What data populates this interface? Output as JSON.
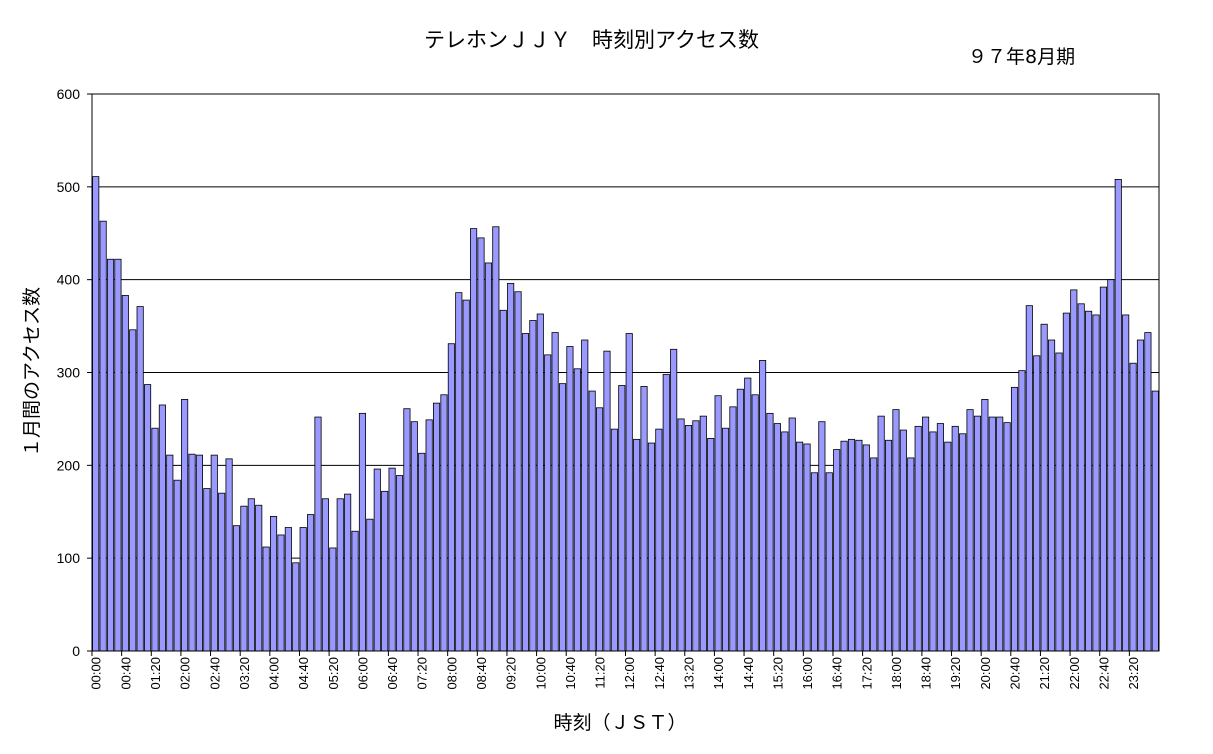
{
  "chart_data": {
    "type": "bar",
    "title": "テレホンＪＪＹ　時刻別アクセス数",
    "subtitle": "９７年8月期",
    "xlabel": "時刻（ＪＳＴ）",
    "ylabel": "１月間のアクセス数",
    "ylim": [
      0,
      600
    ],
    "yticks": [
      0,
      100,
      200,
      300,
      400,
      500,
      600
    ],
    "grid": "horizontal",
    "bar_color": "#9999ff",
    "bar_border": "#000000",
    "categories": [
      "00:00",
      "00:10",
      "00:20",
      "00:30",
      "00:40",
      "00:50",
      "01:00",
      "01:10",
      "01:20",
      "01:30",
      "01:40",
      "01:50",
      "02:00",
      "02:10",
      "02:20",
      "02:30",
      "02:40",
      "02:50",
      "03:00",
      "03:10",
      "03:20",
      "03:30",
      "03:40",
      "03:50",
      "04:00",
      "04:10",
      "04:20",
      "04:30",
      "04:40",
      "04:50",
      "05:00",
      "05:10",
      "05:20",
      "05:30",
      "05:40",
      "05:50",
      "06:00",
      "06:10",
      "06:20",
      "06:30",
      "06:40",
      "06:50",
      "07:00",
      "07:10",
      "07:20",
      "07:30",
      "07:40",
      "07:50",
      "08:00",
      "08:10",
      "08:20",
      "08:30",
      "08:40",
      "08:50",
      "09:00",
      "09:10",
      "09:20",
      "09:30",
      "09:40",
      "09:50",
      "10:00",
      "10:10",
      "10:20",
      "10:30",
      "10:40",
      "10:50",
      "11:00",
      "11:10",
      "11:20",
      "11:30",
      "11:40",
      "11:50",
      "12:00",
      "12:10",
      "12:20",
      "12:30",
      "12:40",
      "12:50",
      "13:00",
      "13:10",
      "13:20",
      "13:30",
      "13:40",
      "13:50",
      "14:00",
      "14:10",
      "14:20",
      "14:30",
      "14:40",
      "14:50",
      "15:00",
      "15:10",
      "15:20",
      "15:30",
      "15:40",
      "15:50",
      "16:00",
      "16:10",
      "16:20",
      "16:30",
      "16:40",
      "16:50",
      "17:00",
      "17:10",
      "17:20",
      "17:30",
      "17:40",
      "17:50",
      "18:00",
      "18:10",
      "18:20",
      "18:30",
      "18:40",
      "18:50",
      "19:00",
      "19:10",
      "19:20",
      "19:30",
      "19:40",
      "19:50",
      "20:00",
      "20:10",
      "20:20",
      "20:30",
      "20:40",
      "20:50",
      "21:00",
      "21:10",
      "21:20",
      "21:30",
      "21:40",
      "21:50",
      "22:00",
      "22:10",
      "22:20",
      "22:30",
      "22:40",
      "22:50",
      "23:00",
      "23:10",
      "23:20",
      "23:30",
      "23:40",
      "23:50"
    ],
    "x_tick_labels": [
      "00:00",
      "00:40",
      "01:20",
      "02:00",
      "02:40",
      "03:20",
      "04:00",
      "04:40",
      "05:20",
      "06:00",
      "06:40",
      "07:20",
      "08:00",
      "08:40",
      "09:20",
      "10:00",
      "10:40",
      "11:20",
      "12:00",
      "12:40",
      "13:20",
      "14:00",
      "14:40",
      "15:20",
      "16:00",
      "16:40",
      "17:20",
      "18:00",
      "18:40",
      "19:20",
      "20:00",
      "20:40",
      "21:20",
      "22:00",
      "22:40",
      "23:20"
    ],
    "values": [
      511,
      463,
      422,
      422,
      383,
      346,
      371,
      287,
      240,
      265,
      211,
      184,
      271,
      212,
      211,
      175,
      211,
      170,
      207,
      135,
      156,
      164,
      157,
      112,
      145,
      125,
      133,
      95,
      133,
      147,
      252,
      164,
      111,
      164,
      169,
      129,
      256,
      142,
      196,
      172,
      197,
      189,
      261,
      247,
      213,
      249,
      267,
      276,
      331,
      386,
      378,
      455,
      445,
      418,
      457,
      367,
      396,
      387,
      342,
      356,
      363,
      319,
      343,
      288,
      328,
      304,
      335,
      280,
      262,
      323,
      239,
      286,
      342,
      228,
      285,
      224,
      239,
      298,
      325,
      250,
      243,
      248,
      253,
      229,
      275,
      240,
      263,
      282,
      294,
      276,
      313,
      256,
      245,
      236,
      251,
      225,
      223,
      192,
      247,
      192,
      217,
      226,
      228,
      227,
      222,
      208,
      253,
      227,
      260,
      238,
      208,
      242,
      252,
      236,
      245,
      225,
      242,
      234,
      260,
      253,
      271,
      252,
      252,
      246,
      284,
      302,
      372,
      318,
      352,
      335,
      321,
      364,
      389,
      374,
      366,
      362,
      392,
      400,
      508,
      362,
      310,
      335,
      343,
      280
    ]
  }
}
